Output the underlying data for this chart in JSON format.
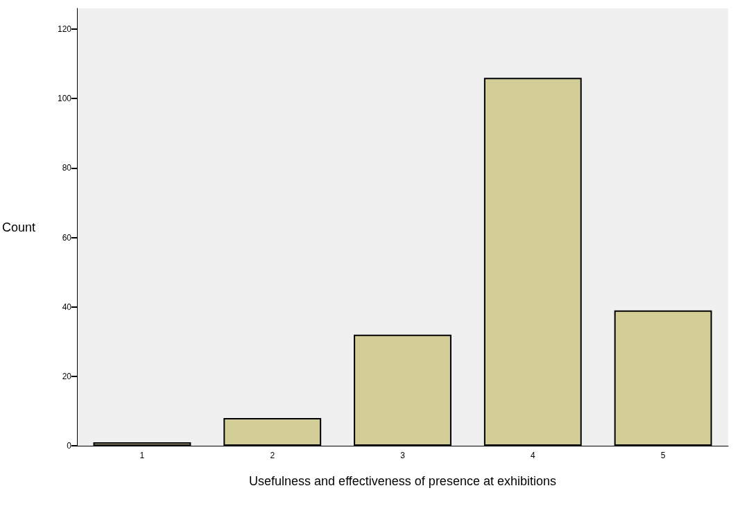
{
  "chart_data": {
    "type": "bar",
    "xlabel": "Usefulness and effectiveness of presence at exhibitions",
    "ylabel": "Count",
    "categories": [
      "1",
      "2",
      "3",
      "4",
      "5"
    ],
    "values": [
      1,
      8,
      32,
      106,
      39
    ],
    "color": "#d3ce97",
    "ylim": [
      0,
      126
    ],
    "yticks": [
      0,
      20,
      40,
      60,
      80,
      100,
      120
    ],
    "grid": false
  }
}
